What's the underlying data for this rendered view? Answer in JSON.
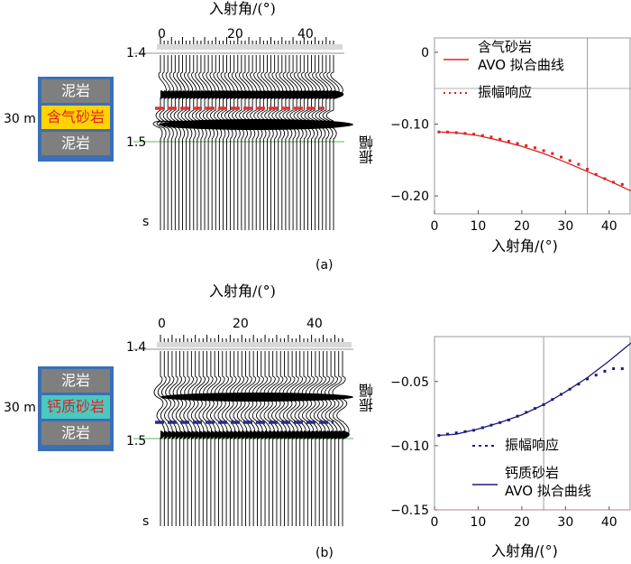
{
  "panels": [
    {
      "id": "a",
      "caption": "(a)",
      "gather": {
        "xlabel": "入射角/(°)",
        "xticks": [
          "0",
          "20",
          "40"
        ],
        "time_ticks": [
          "1.4",
          "1.5",
          "s"
        ],
        "thickness_label": "30 m",
        "layers": [
          "泥岩",
          "含气砂岩",
          "泥岩"
        ],
        "target_color": "#ffd400",
        "target_text_color": "#e02020",
        "pick_color": "#e83030"
      },
      "chart_data": {
        "type": "line",
        "xlabel": "入射角/(°)",
        "ylabel": "振幅",
        "xlim": [
          0,
          45
        ],
        "ylim": [
          -0.225,
          0.02
        ],
        "xticks": [
          0,
          10,
          20,
          30,
          40
        ],
        "yticks": [
          0,
          -0.1,
          -0.2
        ],
        "ytick_labels": [
          "0",
          "−0.10",
          "−0.20"
        ],
        "xtick_labels": [
          "0",
          "10",
          "20",
          "30",
          "40"
        ],
        "legend_position": "top",
        "series": [
          {
            "name": "含气砂岩\nAVO 拟合曲线",
            "legend_lines": [
              "含气砂岩",
              "AVO 拟合曲线"
            ],
            "style": "line",
            "color": "#e02020",
            "x": [
              1,
              5,
              10,
              15,
              20,
              25,
              30,
              35,
              40,
              45
            ],
            "y": [
              -0.111,
              -0.112,
              -0.116,
              -0.123,
              -0.131,
              -0.141,
              -0.153,
              -0.166,
              -0.179,
              -0.193
            ]
          },
          {
            "name": "振幅响应",
            "legend_lines": [
              "振幅响应"
            ],
            "style": "dotted",
            "color": "#e02020",
            "x": [
              1,
              3,
              5,
              7,
              9,
              11,
              13,
              15,
              17,
              19,
              21,
              23,
              25,
              27,
              29,
              31,
              33,
              35,
              37,
              39,
              41,
              43
            ],
            "y": [
              -0.111,
              -0.111,
              -0.112,
              -0.113,
              -0.114,
              -0.116,
              -0.118,
              -0.121,
              -0.124,
              -0.127,
              -0.13,
              -0.133,
              -0.137,
              -0.141,
              -0.146,
              -0.151,
              -0.156,
              -0.163,
              -0.17,
              -0.176,
              -0.181,
              -0.184
            ]
          }
        ]
      }
    },
    {
      "id": "b",
      "caption": "(b)",
      "gather": {
        "xlabel": "入射角/(°)",
        "xticks": [
          "0",
          "20",
          "40"
        ],
        "time_ticks": [
          "1.4",
          "1.5",
          "s"
        ],
        "thickness_label": "30 m",
        "layers": [
          "泥岩",
          "钙质砂岩",
          "泥岩"
        ],
        "target_color": "#4ac9c0",
        "target_text_color": "#e02020",
        "pick_color": "#2a2a90"
      },
      "chart_data": {
        "type": "line",
        "xlabel": "入射角/(°)",
        "ylabel": "振幅",
        "xlim": [
          0,
          45
        ],
        "ylim": [
          -0.15,
          -0.015
        ],
        "xticks": [
          0,
          10,
          20,
          30,
          40
        ],
        "yticks": [
          -0.05,
          -0.1,
          -0.15
        ],
        "ytick_labels": [
          "−0.05",
          "−0.10",
          "−0.15"
        ],
        "xtick_labels": [
          "0",
          "10",
          "20",
          "30",
          "40"
        ],
        "legend_position": "bottom-right",
        "series": [
          {
            "name": "振幅响应",
            "legend_lines": [
              "振幅响应"
            ],
            "style": "dotted",
            "color": "#1a1a80",
            "x": [
              1,
              3,
              5,
              7,
              9,
              11,
              13,
              15,
              17,
              19,
              21,
              23,
              25,
              27,
              29,
              31,
              33,
              35,
              37,
              39,
              41,
              43
            ],
            "y": [
              -0.092,
              -0.091,
              -0.09,
              -0.089,
              -0.088,
              -0.086,
              -0.084,
              -0.082,
              -0.08,
              -0.077,
              -0.074,
              -0.071,
              -0.068,
              -0.064,
              -0.06,
              -0.056,
              -0.052,
              -0.048,
              -0.045,
              -0.042,
              -0.04,
              -0.04
            ]
          },
          {
            "name": "钙质砂岩\nAVO 拟合曲线",
            "legend_lines": [
              "钙质砂岩",
              "AVO 拟合曲线"
            ],
            "style": "line",
            "color": "#1a1a80",
            "x": [
              1,
              5,
              10,
              15,
              20,
              25,
              30,
              35,
              40,
              45
            ],
            "y": [
              -0.092,
              -0.091,
              -0.087,
              -0.082,
              -0.076,
              -0.068,
              -0.058,
              -0.047,
              -0.034,
              -0.02
            ]
          }
        ]
      }
    }
  ]
}
